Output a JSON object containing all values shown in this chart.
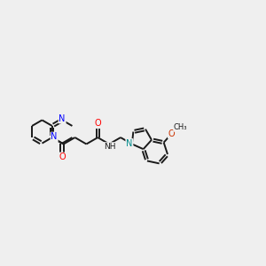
{
  "bg_color": "#efefef",
  "bond_color": "#1a1a1a",
  "N_color": "#0000ff",
  "O_color": "#ff0000",
  "N_indole_color": "#008b8b",
  "O_methoxy_color": "#cc3300",
  "line_width": 1.4,
  "figsize": [
    3.0,
    3.0
  ],
  "dpi": 100,
  "xlim": [
    0,
    10
  ],
  "ylim": [
    2.5,
    7.5
  ]
}
